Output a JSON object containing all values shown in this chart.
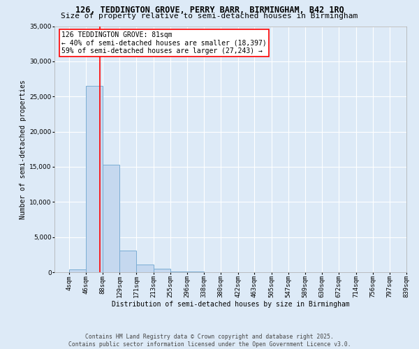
{
  "title1": "126, TEDDINGTON GROVE, PERRY BARR, BIRMINGHAM, B42 1RQ",
  "title2": "Size of property relative to semi-detached houses in Birmingham",
  "xlabel": "Distribution of semi-detached houses by size in Birmingham",
  "ylabel": "Number of semi-detached properties",
  "annotation_title": "126 TEDDINGTON GROVE: 81sqm",
  "annotation_line2": "← 40% of semi-detached houses are smaller (18,397)",
  "annotation_line3": "59% of semi-detached houses are larger (27,243) →",
  "footer1": "Contains HM Land Registry data © Crown copyright and database right 2025.",
  "footer2": "Contains public sector information licensed under the Open Government Licence v3.0.",
  "bin_edges": [
    4,
    46,
    88,
    129,
    171,
    213,
    255,
    296,
    338,
    380,
    422,
    463,
    505,
    547,
    589,
    630,
    672,
    714,
    756,
    797,
    839
  ],
  "bin_labels": [
    "4sqm",
    "46sqm",
    "88sqm",
    "129sqm",
    "171sqm",
    "213sqm",
    "255sqm",
    "296sqm",
    "338sqm",
    "380sqm",
    "422sqm",
    "463sqm",
    "505sqm",
    "547sqm",
    "589sqm",
    "630sqm",
    "672sqm",
    "714sqm",
    "756sqm",
    "797sqm",
    "839sqm"
  ],
  "bar_heights": [
    400,
    26500,
    15300,
    3100,
    1050,
    450,
    80,
    50,
    20,
    10,
    5,
    3,
    2,
    1,
    1,
    1,
    1,
    0,
    0,
    0
  ],
  "bar_color": "#c5d8ef",
  "bar_edgecolor": "#7aadd4",
  "vline_x": 81,
  "vline_color": "red",
  "ylim": [
    0,
    35000
  ],
  "yticks": [
    0,
    5000,
    10000,
    15000,
    20000,
    25000,
    30000,
    35000
  ],
  "background_color": "#ddeaf7",
  "plot_bg_color": "#ddeaf7",
  "grid_color": "white",
  "annotation_box_color": "white",
  "annotation_box_edgecolor": "red",
  "title_fontsize": 8.5,
  "subtitle_fontsize": 8,
  "axis_label_fontsize": 7,
  "tick_fontsize": 6.5,
  "annotation_fontsize": 7,
  "footer_fontsize": 5.8
}
